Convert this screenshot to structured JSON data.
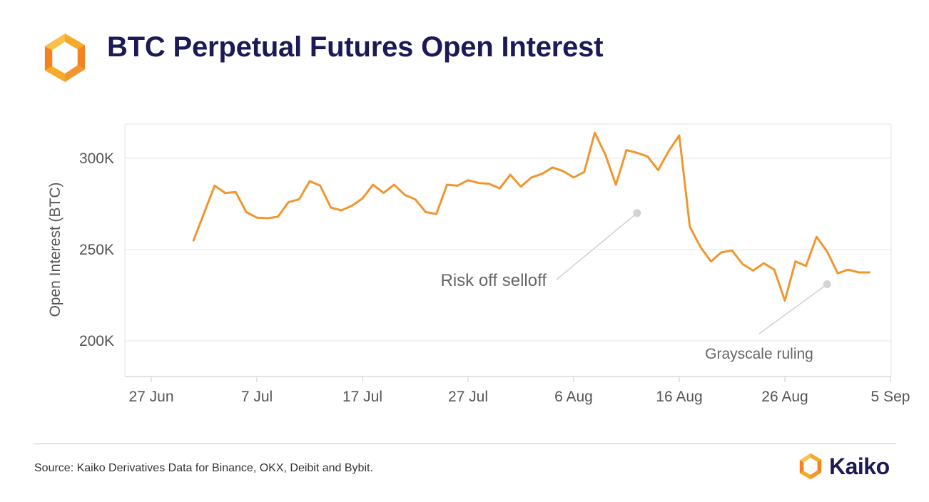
{
  "header": {
    "title": "BTC Perpetual Futures Open Interest"
  },
  "footer": {
    "source": "Source: Kaiko Derivatives Data for Binance, OKX, Deibit and Bybit.",
    "brand_name": "Kaiko"
  },
  "colors": {
    "line": "#f0962f",
    "title": "#1b1a56",
    "grid": "#e6e6e6",
    "axis_text": "#555555",
    "annotation_text": "#666666",
    "marker": "#d3d3d3"
  },
  "chart_data": {
    "type": "line",
    "title": "BTC Perpetual Futures Open Interest",
    "xlabel": "",
    "ylabel": "Open Interest (BTC)",
    "ylim": [
      180000,
      320000
    ],
    "xlim": [
      0,
      72
    ],
    "grid": true,
    "yticks": [
      {
        "value": 200000,
        "label": "200K"
      },
      {
        "value": 250000,
        "label": "250K"
      },
      {
        "value": 300000,
        "label": "300K"
      }
    ],
    "xticks": [
      {
        "day": 0,
        "label": "27 Jun"
      },
      {
        "day": 10,
        "label": "7 Jul"
      },
      {
        "day": 20,
        "label": "17 Jul"
      },
      {
        "day": 30,
        "label": "27 Jul"
      },
      {
        "day": 40,
        "label": "6 Aug"
      },
      {
        "day": 50,
        "label": "16 Aug"
      },
      {
        "day": 60,
        "label": "26 Aug"
      },
      {
        "day": 70,
        "label": "5 Sep"
      }
    ],
    "series": [
      {
        "name": "Open Interest",
        "x": [
          4,
          5,
          6,
          7,
          8,
          9,
          10,
          11,
          12,
          13,
          14,
          15,
          16,
          17,
          18,
          19,
          20,
          21,
          22,
          23,
          24,
          25,
          26,
          27,
          28,
          29,
          30,
          31,
          32,
          33,
          34,
          35,
          36,
          37,
          38,
          39,
          40,
          41,
          42,
          43,
          44,
          45,
          46,
          47,
          48,
          49,
          50,
          51,
          52,
          53,
          54,
          55,
          56,
          57,
          58,
          59,
          60,
          61,
          62,
          63,
          64,
          65,
          66,
          67,
          68
        ],
        "values": [
          255000,
          270000,
          285000,
          281000,
          281500,
          270500,
          267500,
          267200,
          268000,
          276000,
          277500,
          287500,
          285000,
          273000,
          271500,
          274000,
          278000,
          285500,
          281000,
          285500,
          280000,
          277500,
          270500,
          269500,
          285500,
          285000,
          288000,
          286500,
          286000,
          283500,
          291000,
          284500,
          289500,
          291500,
          295000,
          293000,
          289500,
          292500,
          314000,
          302000,
          285500,
          304500,
          303000,
          301000,
          293500,
          304000,
          312500,
          262500,
          251500,
          243500,
          248500,
          249500,
          242000,
          238500,
          242500,
          239000,
          222000,
          243500,
          241000,
          257000,
          249000,
          237000,
          239000,
          237500,
          237500
        ]
      }
    ],
    "annotations": [
      {
        "text": "Risk off selloff",
        "x": 46,
        "y": 270000
      },
      {
        "text": "Grayscale ruling",
        "x": 64,
        "y": 231000
      }
    ]
  }
}
